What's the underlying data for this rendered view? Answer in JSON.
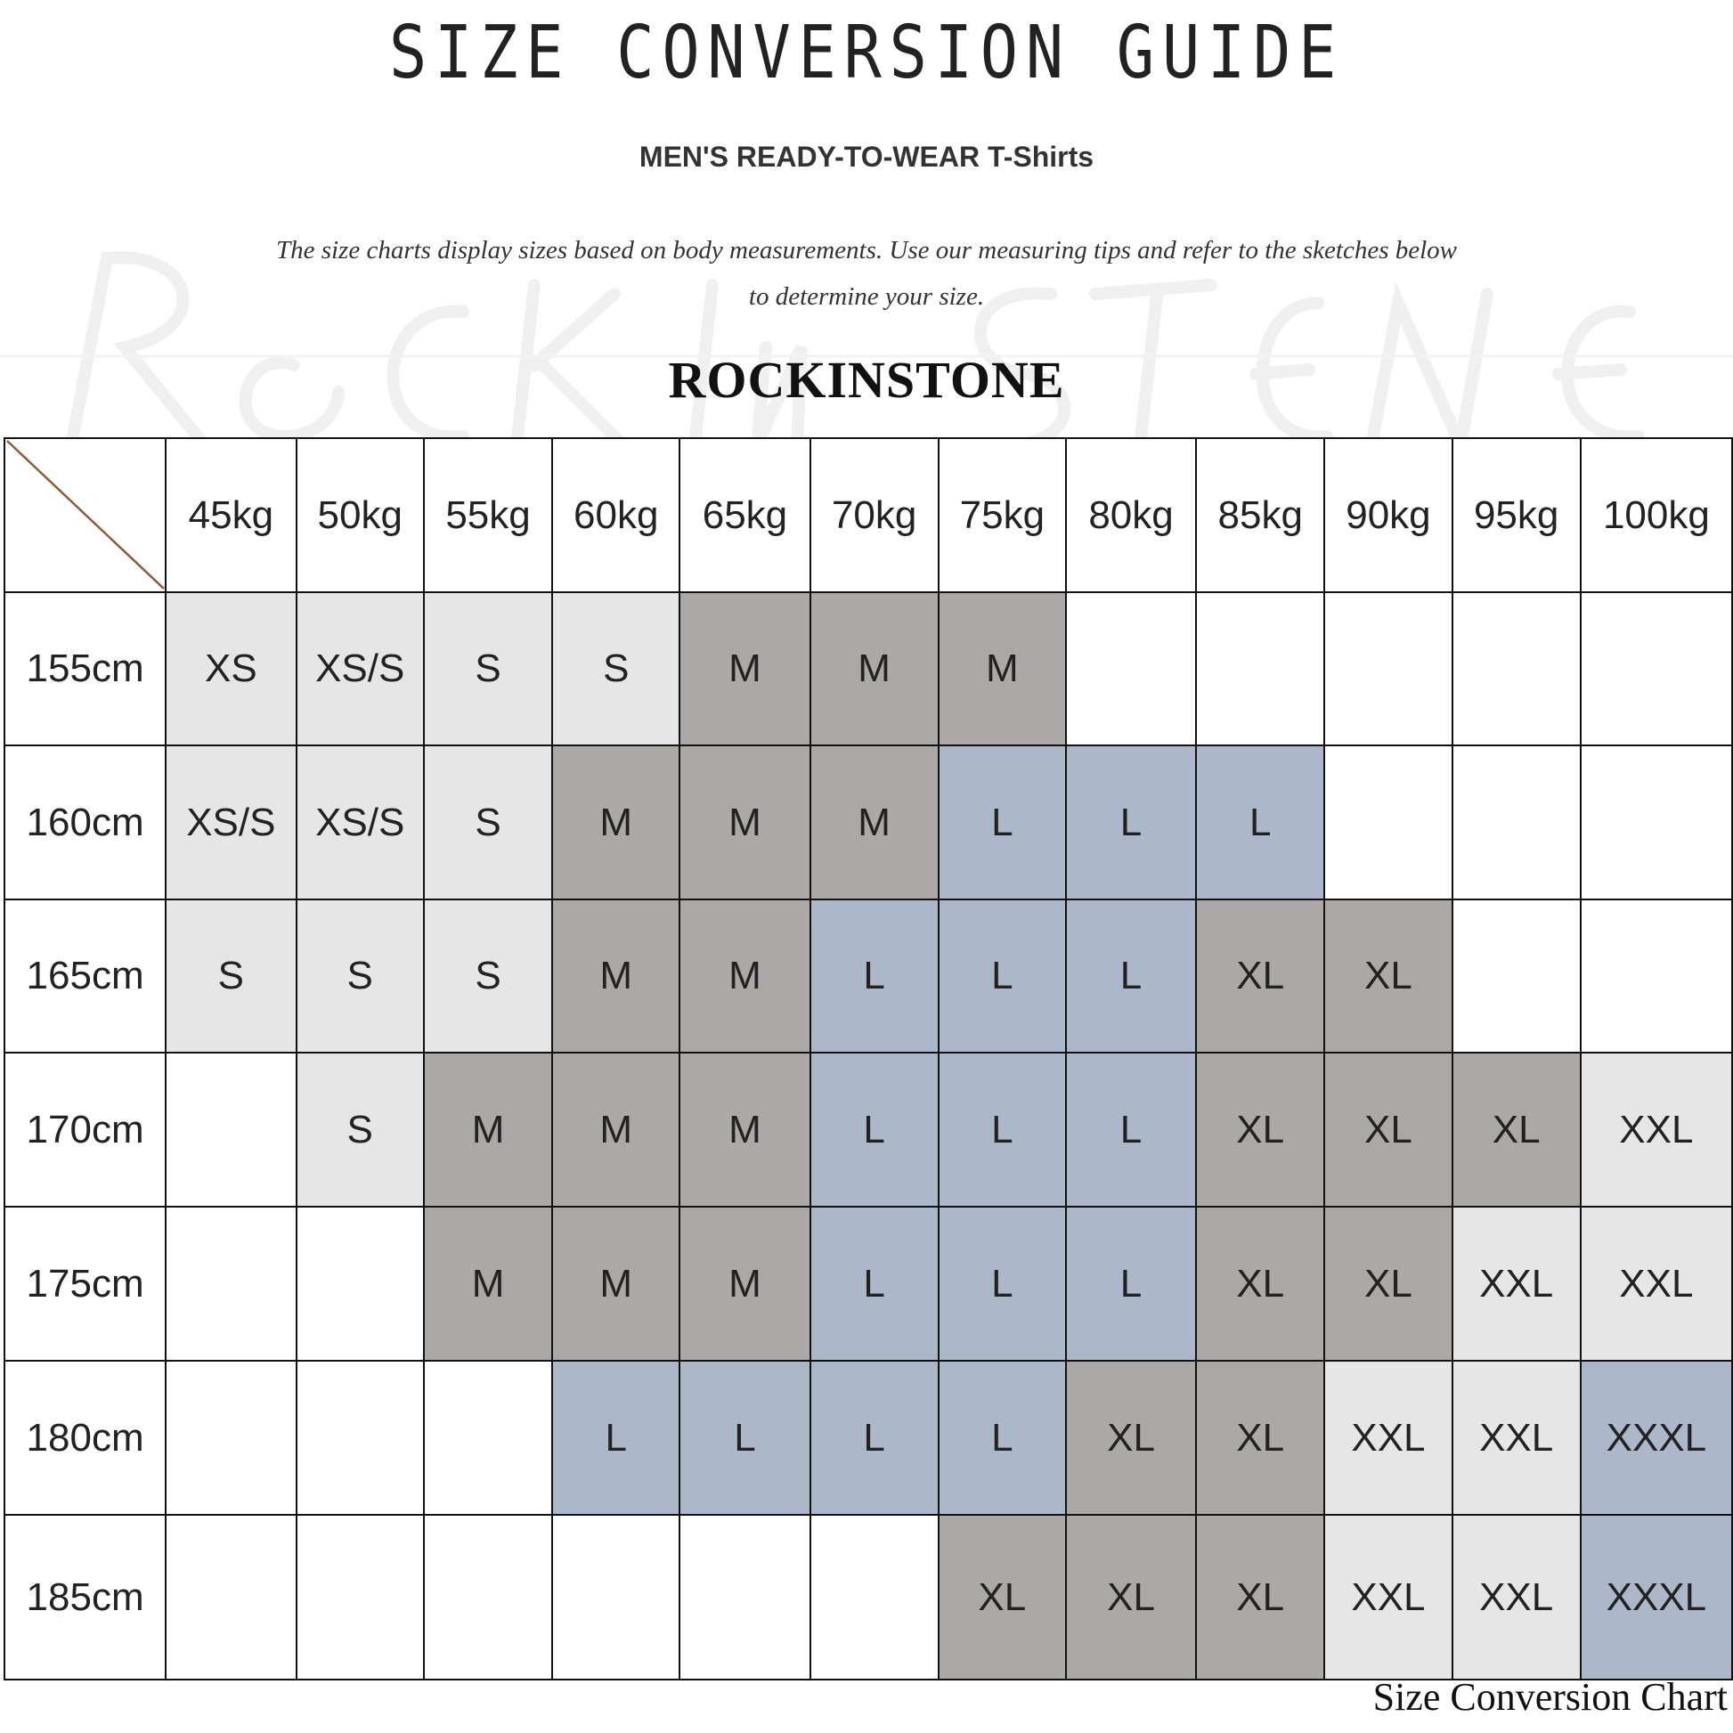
{
  "title": "SIZE CONVERSION GUIDE",
  "subtitle": "MEN'S READY-TO-WEAR T-Shirts",
  "description": "The size charts display sizes based on body measurements. Use our measuring tips and refer to the sketches below to determine your size.",
  "brand": "ROCKINSTONE",
  "watermark": "Rockinstone",
  "footer": "Size Conversion Chart",
  "colors": {
    "XS": "#e6e6e6",
    "XS/S": "#e6e6e6",
    "S": "#e6e6e6",
    "M": "#aca8a7",
    "L": "#acb7c9",
    "XL": "#aca8a7",
    "XXL": "#e6e6e6",
    "XXXL": "#acb7c9",
    "": "#ffffff",
    "diagonal": "#8b5a3c"
  },
  "weights": [
    "45kg",
    "50kg",
    "55kg",
    "60kg",
    "65kg",
    "70kg",
    "75kg",
    "80kg",
    "85kg",
    "90kg",
    "95kg",
    "100kg"
  ],
  "rows": [
    {
      "height": "155cm",
      "sizes": [
        "XS",
        "XS/S",
        "S",
        "S",
        "M",
        "M",
        "M",
        "",
        "",
        "",
        "",
        ""
      ]
    },
    {
      "height": "160cm",
      "sizes": [
        "XS/S",
        "XS/S",
        "S",
        "M",
        "M",
        "M",
        "L",
        "L",
        "L",
        "",
        "",
        ""
      ]
    },
    {
      "height": "165cm",
      "sizes": [
        "S",
        "S",
        "S",
        "M",
        "M",
        "L",
        "L",
        "L",
        "XL",
        "XL",
        "",
        ""
      ]
    },
    {
      "height": "170cm",
      "sizes": [
        "",
        "S",
        "M",
        "M",
        "M",
        "L",
        "L",
        "L",
        "XL",
        "XL",
        "XL",
        "XXL"
      ]
    },
    {
      "height": "175cm",
      "sizes": [
        "",
        "",
        "M",
        "M",
        "M",
        "L",
        "L",
        "L",
        "XL",
        "XL",
        "XXL",
        "XXL"
      ]
    },
    {
      "height": "180cm",
      "sizes": [
        "",
        "",
        "",
        "L",
        "L",
        "L",
        "L",
        "XL",
        "XL",
        "XXL",
        "XXL",
        "XXXL"
      ]
    },
    {
      "height": "185cm",
      "sizes": [
        "",
        "",
        "",
        "",
        "",
        "",
        "XL",
        "XL",
        "XL",
        "XXL",
        "XXL",
        "XXXL"
      ]
    }
  ]
}
